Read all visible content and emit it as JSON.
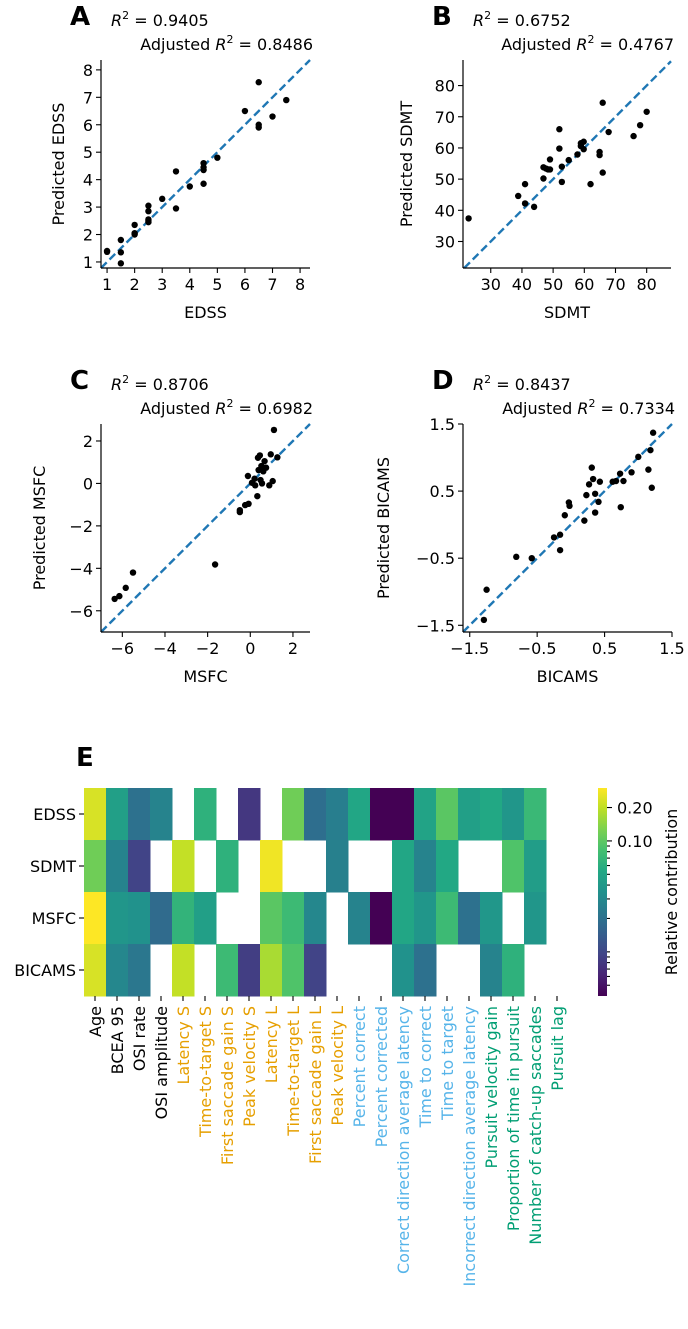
{
  "chart_data": [
    {
      "type": "scatter",
      "panel_label": "A",
      "r2": "0.9405",
      "adj_r2": "0.8486",
      "r2_symbol": "R",
      "r2_exp": "2",
      "adjusted_word": "Adjusted",
      "xlabel": "EDSS",
      "ylabel": "Predicted EDSS",
      "xlim": [
        0.78,
        8.36
      ],
      "ylim": [
        0.78,
        8.36
      ],
      "xticks": [
        1,
        2,
        3,
        4,
        5,
        6,
        7,
        8
      ],
      "xtick_labels": [
        "1",
        "2",
        "3",
        "4",
        "5",
        "6",
        "7",
        "8"
      ],
      "yticks": [
        1,
        2,
        3,
        4,
        5,
        6,
        7,
        8
      ],
      "ytick_labels": [
        "1",
        "2",
        "3",
        "4",
        "5",
        "6",
        "7",
        "8"
      ],
      "identity_line": true,
      "line_color": "#1f77b4",
      "points": [
        [
          1,
          1.4
        ],
        [
          1,
          1.37
        ],
        [
          1.5,
          1.8
        ],
        [
          1.5,
          1.35
        ],
        [
          1.5,
          0.95
        ],
        [
          2,
          2.35
        ],
        [
          2,
          2.0
        ],
        [
          2,
          2.05
        ],
        [
          2.5,
          3.05
        ],
        [
          2.5,
          2.85
        ],
        [
          2.5,
          2.55
        ],
        [
          2.5,
          2.45
        ],
        [
          2.5,
          2.5
        ],
        [
          3,
          3.3
        ],
        [
          3.5,
          4.3
        ],
        [
          3.5,
          2.95
        ],
        [
          4,
          3.75
        ],
        [
          4.5,
          4.6
        ],
        [
          4.5,
          4.45
        ],
        [
          4.5,
          4.35
        ],
        [
          4.5,
          3.85
        ],
        [
          5,
          4.8
        ],
        [
          6,
          6.5
        ],
        [
          6.5,
          7.55
        ],
        [
          6.5,
          6.0
        ],
        [
          6.5,
          5.9
        ],
        [
          7,
          6.3
        ],
        [
          7.5,
          6.9
        ]
      ]
    },
    {
      "type": "scatter",
      "panel_label": "B",
      "r2": "0.6752",
      "adj_r2": "0.4767",
      "r2_symbol": "R",
      "r2_exp": "2",
      "adjusted_word": "Adjusted",
      "xlabel": "SDMT",
      "ylabel": "Predicted SDMT",
      "xlim": [
        21.1,
        87.8
      ],
      "ylim": [
        21.5,
        88.2
      ],
      "xticks": [
        30,
        40,
        50,
        60,
        70,
        80
      ],
      "xtick_labels": [
        "30",
        "40",
        "50",
        "60",
        "70",
        "80"
      ],
      "yticks": [
        30,
        40,
        50,
        60,
        70,
        80
      ],
      "ytick_labels": [
        "30",
        "40",
        "50",
        "60",
        "70",
        "80"
      ],
      "identity_line": true,
      "line_color": "#1f77b4",
      "points": [
        [
          22.9,
          37.4
        ],
        [
          38.8,
          44.6
        ],
        [
          41,
          48.4
        ],
        [
          41,
          42.2
        ],
        [
          43.9,
          41.1
        ],
        [
          46.9,
          50.2
        ],
        [
          46.9,
          53.8
        ],
        [
          47.7,
          53.4
        ],
        [
          48.4,
          53.1
        ],
        [
          49,
          53.1
        ],
        [
          49,
          56.3
        ],
        [
          52,
          66
        ],
        [
          52,
          59.8
        ],
        [
          52.8,
          54
        ],
        [
          52.8,
          49.1
        ],
        [
          55,
          56.1
        ],
        [
          57.8,
          57.9
        ],
        [
          58.9,
          61.5
        ],
        [
          58.9,
          60.6
        ],
        [
          59.8,
          62
        ],
        [
          59.8,
          59.6
        ],
        [
          64.9,
          58.7
        ],
        [
          64.9,
          57.7
        ],
        [
          65.9,
          74.5
        ],
        [
          65.9,
          52.1
        ],
        [
          62,
          48.4
        ],
        [
          67.8,
          65.1
        ],
        [
          75.8,
          63.8
        ],
        [
          77.9,
          67.3
        ],
        [
          80,
          71.6
        ]
      ]
    },
    {
      "type": "scatter",
      "panel_label": "C",
      "r2": "0.8706",
      "adj_r2": "0.6982",
      "r2_symbol": "R",
      "r2_exp": "2",
      "adjusted_word": "Adjusted",
      "xlabel": "MSFC",
      "ylabel": "Predicted MSFC",
      "xlim": [
        -7.0,
        2.8
      ],
      "ylim": [
        -7.0,
        2.8
      ],
      "xticks": [
        -6,
        -4,
        -2,
        0,
        2
      ],
      "xtick_labels": [
        "−6",
        "−4",
        "−2",
        "0",
        "2"
      ],
      "yticks": [
        -6,
        -4,
        -2,
        0,
        2
      ],
      "ytick_labels": [
        "−6",
        "−4",
        "−2",
        "0",
        "2"
      ],
      "identity_line": true,
      "line_color": "#1f77b4",
      "points": [
        [
          -6.36,
          -5.44
        ],
        [
          -6.14,
          -5.31
        ],
        [
          -5.84,
          -4.92
        ],
        [
          -5.5,
          -4.2
        ],
        [
          -1.65,
          -3.82
        ],
        [
          -0.49,
          -1.26
        ],
        [
          -0.49,
          -1.35
        ],
        [
          -0.24,
          -1.02
        ],
        [
          -0.08,
          -0.96
        ],
        [
          -0.11,
          0.35
        ],
        [
          0.08,
          0.03
        ],
        [
          0.2,
          0.22
        ],
        [
          0.23,
          -0.09
        ],
        [
          0.33,
          -0.6
        ],
        [
          0.36,
          1.21
        ],
        [
          0.45,
          1.32
        ],
        [
          0.39,
          0.63
        ],
        [
          0.52,
          0.82
        ],
        [
          0.48,
          0.16
        ],
        [
          0.55,
          0.0
        ],
        [
          0.61,
          0.57
        ],
        [
          0.67,
          1.05
        ],
        [
          0.74,
          0.74
        ],
        [
          0.89,
          -0.09
        ],
        [
          0.96,
          1.37
        ],
        [
          1.05,
          0.11
        ],
        [
          1.11,
          2.52
        ],
        [
          1.27,
          1.23
        ]
      ]
    },
    {
      "type": "scatter",
      "panel_label": "D",
      "r2": "0.8437",
      "adj_r2": "0.7334",
      "r2_symbol": "R",
      "r2_exp": "2",
      "adjusted_word": "Adjusted",
      "xlabel": "BICAMS",
      "ylabel": "Predicted BICAMS",
      "xlim": [
        -1.6,
        1.5
      ],
      "ylim": [
        -1.6,
        1.5
      ],
      "xticks": [
        -1.5,
        -0.5,
        0.5,
        1.5
      ],
      "xtick_labels": [
        "−1.5",
        "−0.5",
        "0.5",
        "1.5"
      ],
      "yticks": [
        -1.5,
        -0.5,
        0.5,
        1.5
      ],
      "ytick_labels": [
        "−1.5",
        "−0.5",
        "0.5",
        "1.5"
      ],
      "identity_line": true,
      "line_color": "#1f77b4",
      "points": [
        [
          -1.29,
          -1.42
        ],
        [
          -1.25,
          -0.97
        ],
        [
          -0.81,
          -0.48
        ],
        [
          -0.58,
          -0.5
        ],
        [
          -0.25,
          -0.19
        ],
        [
          -0.16,
          -0.15
        ],
        [
          -0.16,
          -0.38
        ],
        [
          -0.09,
          0.14
        ],
        [
          -0.03,
          0.33
        ],
        [
          -0.02,
          0.28
        ],
        [
          0.2,
          0.06
        ],
        [
          0.23,
          0.44
        ],
        [
          0.27,
          0.6
        ],
        [
          0.31,
          0.85
        ],
        [
          0.33,
          0.68
        ],
        [
          0.36,
          0.46
        ],
        [
          0.36,
          0.18
        ],
        [
          0.41,
          0.34
        ],
        [
          0.43,
          0.64
        ],
        [
          0.62,
          0.64
        ],
        [
          0.67,
          0.65
        ],
        [
          0.73,
          0.76
        ],
        [
          0.74,
          0.26
        ],
        [
          0.78,
          0.65
        ],
        [
          0.9,
          0.78
        ],
        [
          1.0,
          1.01
        ],
        [
          1.15,
          0.82
        ],
        [
          1.18,
          1.11
        ],
        [
          1.2,
          0.55
        ],
        [
          1.22,
          1.37
        ]
      ]
    },
    {
      "type": "heatmap",
      "panel_label": "E",
      "rows": [
        "EDSS",
        "SDMT",
        "MSFC",
        "BICAMS"
      ],
      "columns": [
        "Age",
        "BCEA 95",
        "OSI rate",
        "OSI amplitude",
        "Latency S",
        "Time-to-target S",
        "First saccade gain S",
        "Peak velocity S",
        "Latency L",
        "Time-to-target L",
        "First saccade gain L",
        "Peak velocity L",
        "Percent correct",
        "Percent corrected",
        "Correct direction average latency",
        "Time to correct",
        "Time to target",
        "Incorrect direction average latency",
        "Pursuit velocity gain",
        "Proportion of time in pursuit",
        "Number of catch-up saccades",
        "Pursuit lag"
      ],
      "column_groups": [
        "general",
        "general",
        "general",
        "general",
        "saccade",
        "saccade",
        "saccade",
        "saccade",
        "saccade",
        "saccade",
        "saccade",
        "saccade",
        "antisaccade",
        "antisaccade",
        "antisaccade",
        "antisaccade",
        "antisaccade",
        "antisaccade",
        "pursuit",
        "pursuit",
        "pursuit",
        "pursuit"
      ],
      "group_colors": {
        "general": "#000000",
        "saccade": "#e69f00",
        "antisaccade": "#56b4e9",
        "pursuit": "#009e73"
      },
      "values": [
        [
          0.232,
          0.045,
          0.02,
          0.027,
          null,
          0.063,
          null,
          0.008,
          null,
          0.116,
          0.019,
          0.025,
          0.051,
          0.004,
          0.004,
          0.049,
          0.098,
          0.045,
          0.053,
          0.038,
          0.072,
          null
        ],
        [
          0.116,
          0.027,
          0.0095,
          null,
          0.203,
          null,
          0.063,
          null,
          0.275,
          null,
          null,
          0.026,
          null,
          null,
          0.051,
          0.027,
          0.053,
          null,
          null,
          0.09,
          0.043,
          null
        ],
        [
          0.3,
          0.038,
          0.035,
          0.018,
          0.066,
          0.045,
          null,
          null,
          0.098,
          0.075,
          0.029,
          null,
          0.027,
          0.004,
          0.051,
          0.038,
          0.075,
          0.02,
          0.039,
          null,
          0.038,
          null
        ],
        [
          0.232,
          0.029,
          0.022,
          null,
          0.203,
          null,
          0.075,
          0.0087,
          0.171,
          0.09,
          0.0095,
          null,
          null,
          null,
          0.035,
          0.02,
          null,
          null,
          0.027,
          0.063,
          null,
          null
        ]
      ],
      "colormap": "viridis",
      "scale": "log",
      "vlim": [
        0.004,
        0.3
      ],
      "colorbar_label": "Relative contribution",
      "colorbar_ticks": [
        0.2,
        0.1
      ],
      "colorbar_tick_labels": [
        "0.20",
        "0.10"
      ],
      "colorbar_minor_ticks": [
        0.09,
        0.08,
        0.07,
        0.06,
        0.05,
        0.04,
        0.03,
        0.02,
        0.01,
        0.009,
        0.008,
        0.007,
        0.006,
        0.005
      ]
    }
  ]
}
